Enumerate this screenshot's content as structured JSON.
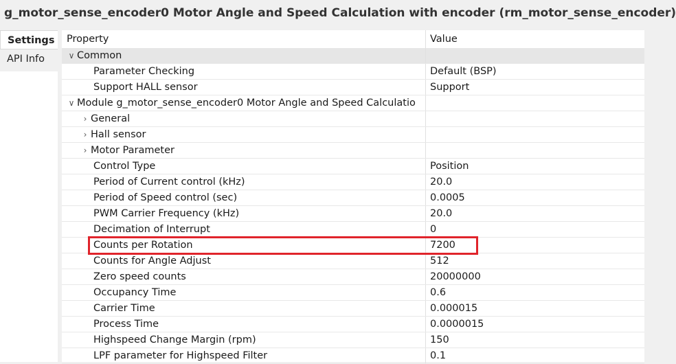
{
  "title": "g_motor_sense_encoder0 Motor Angle and Speed Calculation with encoder (rm_motor_sense_encoder)",
  "side_tabs": [
    {
      "label": "Settings"
    },
    {
      "label": "API Info"
    }
  ],
  "table": {
    "header": {
      "property": "Property",
      "value": "Value"
    },
    "rows": [
      {
        "label": "Common",
        "value": "",
        "kind": "group"
      },
      {
        "label": "Parameter Checking",
        "value": "Default (BSP)",
        "kind": "leaf1"
      },
      {
        "label": "Support HALL sensor",
        "value": "Support",
        "kind": "leaf1"
      },
      {
        "label": "Module g_motor_sense_encoder0 Motor Angle and Speed Calculatio",
        "value": "",
        "kind": "module"
      },
      {
        "label": "General",
        "value": "",
        "kind": "collapsed"
      },
      {
        "label": "Hall sensor",
        "value": "",
        "kind": "collapsed"
      },
      {
        "label": "Motor Parameter",
        "value": "",
        "kind": "collapsed"
      },
      {
        "label": "Control Type",
        "value": "Position",
        "kind": "leaf2"
      },
      {
        "label": "Period of Current control (kHz)",
        "value": "20.0",
        "kind": "leaf2"
      },
      {
        "label": "Period of Speed control (sec)",
        "value": "0.0005",
        "kind": "leaf2"
      },
      {
        "label": "PWM Carrier Frequency (kHz)",
        "value": "20.0",
        "kind": "leaf2"
      },
      {
        "label": "Decimation of Interrupt",
        "value": "0",
        "kind": "leaf2"
      },
      {
        "label": "Counts per Rotation",
        "value": "7200",
        "kind": "leaf2"
      },
      {
        "label": "Counts for Angle Adjust",
        "value": "512",
        "kind": "leaf2"
      },
      {
        "label": "Zero speed counts",
        "value": "20000000",
        "kind": "leaf2"
      },
      {
        "label": "Occupancy Time",
        "value": "0.6",
        "kind": "leaf2"
      },
      {
        "label": "Carrier Time",
        "value": "0.000015",
        "kind": "leaf2"
      },
      {
        "label": "Process Time",
        "value": "0.0000015",
        "kind": "leaf2"
      },
      {
        "label": "Highspeed Change Margin (rpm)",
        "value": "150",
        "kind": "leaf2"
      },
      {
        "label": "LPF parameter for Highspeed Filter",
        "value": "0.1",
        "kind": "leaf2"
      }
    ]
  },
  "colors": {
    "highlight": "#e0242b",
    "group_bg": "#e6e6e6"
  }
}
